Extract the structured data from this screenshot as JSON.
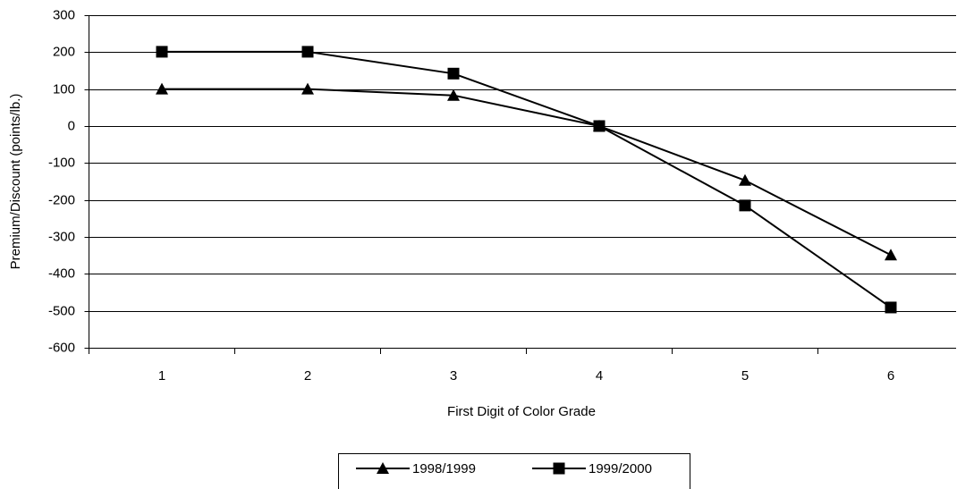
{
  "chart_data": {
    "type": "line",
    "x_label": "First Digit of Color Grade",
    "y_label": "Premium/Discount (points/lb.)",
    "categories": [
      1,
      2,
      3,
      4,
      5,
      6
    ],
    "series": [
      {
        "name": "1998/1999",
        "color": "#000000",
        "marker": "triangle",
        "values": [
          100,
          100,
          83,
          0,
          -147,
          -349
        ]
      },
      {
        "name": "1999/2000",
        "color": "#000000",
        "marker": "square",
        "values": [
          201,
          201,
          142,
          0,
          -215,
          -491
        ]
      }
    ],
    "ylim": [
      -600,
      300
    ],
    "yticks": [
      -600,
      -500,
      -400,
      -300,
      -200,
      -100,
      0,
      100,
      200,
      300
    ],
    "grid": true,
    "legend": "bottom"
  }
}
